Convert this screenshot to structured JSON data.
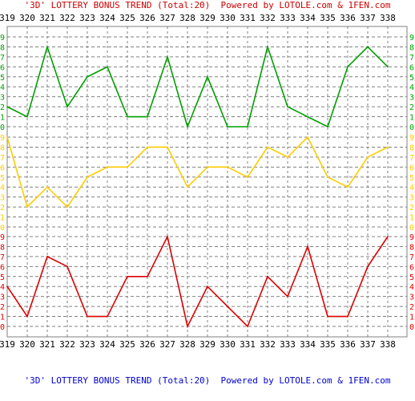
{
  "title_top": "'3D' LOTTERY BONUS TREND (Total:20)  Powered by LOTOLE.com & 1FEN.com",
  "title_bottom": "'3D' LOTTERY BONUS TREND (Total:20)  Powered by LOTOLE.com & 1FEN.com",
  "colors": {
    "green": "#00a000",
    "yellow": "#ffcc00",
    "red": "#dd0000",
    "grid": "#808080",
    "axis_text": "#000000"
  },
  "chart_data": {
    "type": "line",
    "categories": [
      "319",
      "320",
      "321",
      "322",
      "323",
      "324",
      "325",
      "326",
      "327",
      "328",
      "329",
      "330",
      "331",
      "332",
      "333",
      "334",
      "335",
      "336",
      "337",
      "338"
    ],
    "digit_ticks": [
      "0",
      "1",
      "2",
      "3",
      "4",
      "5",
      "6",
      "7",
      "8",
      "9"
    ],
    "ylim": [
      0,
      9
    ],
    "grid": true,
    "series": [
      {
        "color": "green",
        "values": [
          2,
          1,
          8,
          2,
          5,
          6,
          1,
          1,
          7,
          0,
          5,
          0,
          0,
          8,
          2,
          1,
          0,
          6,
          8,
          6
        ]
      },
      {
        "color": "yellow",
        "values": [
          9,
          2,
          4,
          2,
          5,
          6,
          6,
          8,
          8,
          4,
          6,
          6,
          5,
          8,
          7,
          9,
          5,
          4,
          7,
          8
        ]
      },
      {
        "color": "red",
        "values": [
          4,
          1,
          7,
          6,
          1,
          1,
          5,
          5,
          9,
          0,
          4,
          2,
          0,
          5,
          3,
          8,
          1,
          1,
          6,
          9
        ]
      }
    ]
  }
}
